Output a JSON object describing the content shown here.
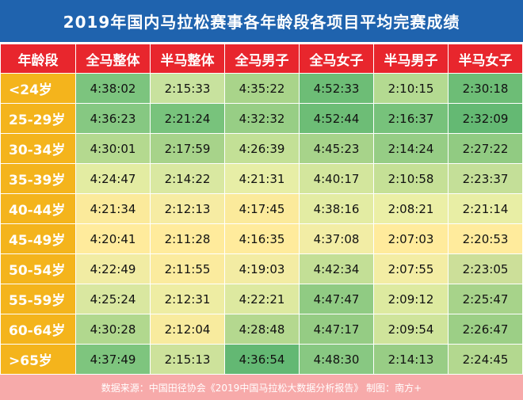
{
  "title": "2019年国内马拉松赛事各年龄段各项目平均完赛成绩",
  "headers": [
    "年龄段",
    "全马整体",
    "半马整体",
    "全马男子",
    "全马女子",
    "半马男子",
    "半马女子"
  ],
  "rows": [
    {
      "age": "<24岁",
      "values": [
        "4:38:02",
        "2:15:33",
        "4:35:22",
        "4:52:33",
        "2:10:15",
        "2:30:18"
      ],
      "colors": [
        "#7cc47e",
        "#c8e29e",
        "#a9d48a",
        "#6dbd76",
        "#b4da91",
        "#6dbd76"
      ]
    },
    {
      "age": "25-29岁",
      "values": [
        "4:36:23",
        "2:21:24",
        "4:32:32",
        "4:52:44",
        "2:16:37",
        "2:32:09"
      ],
      "colors": [
        "#86c882",
        "#78c37c",
        "#97ce85",
        "#6dbd76",
        "#77c27b",
        "#64b973"
      ]
    },
    {
      "age": "30-34岁",
      "values": [
        "4:30:01",
        "2:17:59",
        "4:26:39",
        "4:45:23",
        "2:14:24",
        "2:27:22"
      ],
      "colors": [
        "#b4d98f",
        "#a7d38a",
        "#c3e096",
        "#a7d38a",
        "#96cd85",
        "#91cb82"
      ]
    },
    {
      "age": "35-39岁",
      "values": [
        "4:24:47",
        "2:14:22",
        "4:21:31",
        "4:40:17",
        "2:10:58",
        "2:23:37"
      ],
      "colors": [
        "#e3eca2",
        "#d9e8a1",
        "#e7eea6",
        "#d3e69d",
        "#c5e096",
        "#c4df98"
      ]
    },
    {
      "age": "40-44岁",
      "values": [
        "4:21:34",
        "2:12:13",
        "4:17:45",
        "4:38:16",
        "2:08:21",
        "2:21:14"
      ],
      "colors": [
        "#fbea9b",
        "#f6eca3",
        "#fbea9b",
        "#e3eca3",
        "#ebefa6",
        "#e8eea5"
      ]
    },
    {
      "age": "45-49岁",
      "values": [
        "4:20:41",
        "2:11:28",
        "4:16:35",
        "4:37:08",
        "2:07:03",
        "2:20:53"
      ],
      "colors": [
        "#ffeb9c",
        "#ffeb9c",
        "#ffeb9c",
        "#f2eda5",
        "#ffeb9c",
        "#ffeb9c"
      ]
    },
    {
      "age": "50-54岁",
      "values": [
        "4:22:49",
        "2:11:55",
        "4:19:03",
        "4:42:34",
        "2:07:55",
        "2:23:05"
      ],
      "colors": [
        "#f1eca3",
        "#fbeb9e",
        "#f3eca3",
        "#c3df96",
        "#f3eda4",
        "#ccdf99"
      ]
    },
    {
      "age": "55-59岁",
      "values": [
        "4:25:24",
        "2:12:31",
        "4:22:21",
        "4:47:47",
        "2:09:12",
        "2:25:47"
      ],
      "colors": [
        "#d9e7a0",
        "#eeeda3",
        "#dde9a0",
        "#90cb83",
        "#ddeaa0",
        "#a7d38a"
      ]
    },
    {
      "age": "60-64岁",
      "values": [
        "4:30:28",
        "2:12:04",
        "4:28:48",
        "4:47:17",
        "2:09:54",
        "2:26:47"
      ],
      "colors": [
        "#b1d88e",
        "#f8eb9e",
        "#b4d88f",
        "#95cc84",
        "#cfe49b",
        "#9ccf86"
      ]
    },
    {
      "age": ">65岁",
      "values": [
        "4:37:49",
        "2:15:13",
        "4:36:54",
        "4:48:30",
        "2:14:13",
        "2:24:45"
      ],
      "colors": [
        "#7ec57e",
        "#cde29b",
        "#63b873",
        "#88c882",
        "#98cd85",
        "#b3d88f"
      ]
    }
  ],
  "footer": "数据来源：中国田径协会《2019中国马拉松大数据分析报告》    制图：南方+"
}
